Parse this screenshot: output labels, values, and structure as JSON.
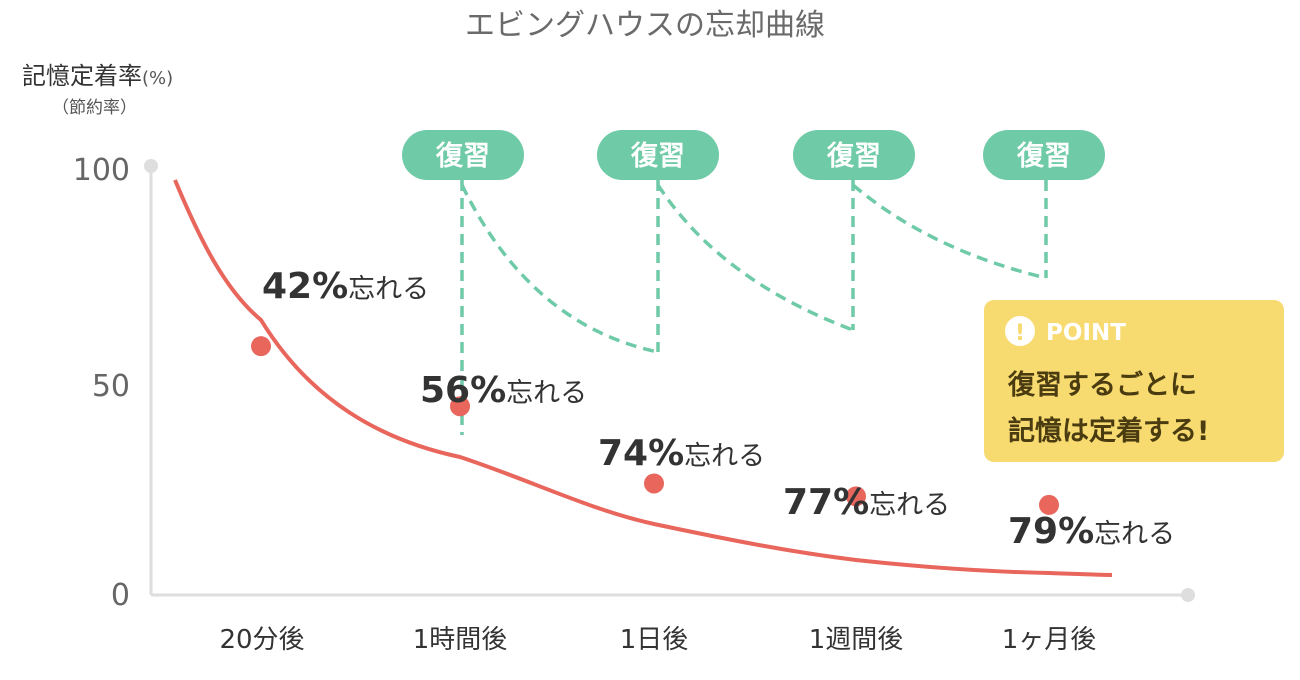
{
  "chart_data": {
    "type": "line",
    "title": "エビングハウスの忘却曲線",
    "ylabel": "記憶定着率",
    "ylabel_unit": "(%)",
    "ylabel_sub": "（節約率）",
    "ylim": [
      0,
      100
    ],
    "yticks": [
      "100",
      "50",
      "0"
    ],
    "categories": [
      "20分後",
      "1時間後",
      "1日後",
      "1週間後",
      "1ヶ月後"
    ],
    "series": [
      {
        "values": [
          58,
          44,
          26,
          23,
          21
        ],
        "color": "#e8665c"
      }
    ],
    "forget_labels": [
      {
        "pct": "42%",
        "suffix": "忘れる"
      },
      {
        "pct": "56%",
        "suffix": "忘れる"
      },
      {
        "pct": "74%",
        "suffix": "忘れる"
      },
      {
        "pct": "77%",
        "suffix": "忘れる"
      },
      {
        "pct": "79%",
        "suffix": "忘れる"
      }
    ],
    "review_label": "復習",
    "review_count": 4,
    "review_color": "#6fcaa7",
    "grid": false
  },
  "point_box": {
    "title": "POINT",
    "line1": "復習するごとに",
    "line2": "記憶は定着する!",
    "color": "#f7da70"
  },
  "colors": {
    "axis": "#dedede",
    "text": "#333333",
    "curve": "#e8665c",
    "review": "#6fcaa7",
    "point": "#f7da70"
  }
}
